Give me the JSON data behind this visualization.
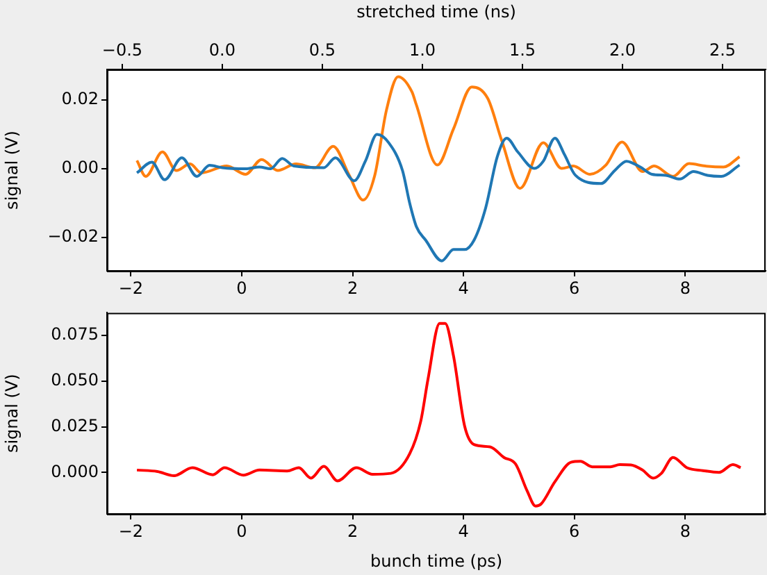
{
  "chart_data": [
    {
      "type": "line",
      "ylabel": "signal (V)",
      "x2label": "stretched time (ns)",
      "marker": "none",
      "xlim": [
        -2.43,
        9.45
      ],
      "xticks": [
        {
          "value": -2,
          "label": "−2"
        },
        0,
        2,
        4,
        6,
        8
      ],
      "x2lim": [
        -0.576,
        2.715
      ],
      "x2ticks": [
        {
          "value": -0.5,
          "label": "−0.5"
        },
        {
          "value": 0,
          "label": "0.0"
        },
        {
          "value": 0.5,
          "label": "0.5"
        },
        {
          "value": 1,
          "label": "1.0"
        },
        {
          "value": 1.5,
          "label": "1.5"
        },
        {
          "value": 2,
          "label": "2.0"
        },
        {
          "value": 2.5,
          "label": "2.5"
        }
      ],
      "ylim": [
        -0.0297,
        0.0289
      ],
      "yticks": [
        {
          "value": -0.02,
          "label": "−0.02"
        },
        {
          "value": 0,
          "label": "0.00"
        },
        {
          "value": 0.02,
          "label": "0.02"
        }
      ],
      "series": [
        {
          "color": "#1f77b4",
          "x": [
            -1.89,
            -1.62,
            -1.39,
            -1.08,
            -0.81,
            -0.58,
            -0.35,
            0.07,
            0.32,
            0.52,
            0.73,
            0.94,
            1.48,
            1.69,
            2.03,
            2.23,
            2.44,
            2.65,
            2.9,
            3.03,
            3.15,
            3.32,
            3.61,
            3.82,
            4.02,
            4.19,
            4.4,
            4.61,
            4.78,
            4.98,
            5.28,
            5.44,
            5.65,
            5.82,
            6.02,
            6.48,
            6.73,
            6.94,
            7.19,
            7.4,
            7.65,
            7.9,
            8.15,
            8.4,
            8.65,
            8.98
          ],
          "values": [
            -0.0012,
            0.0019,
            -0.0032,
            0.0032,
            -0.0022,
            0.001,
            0.0003,
            0,
            0.0005,
            0,
            0.003,
            0.0008,
            0.0003,
            0.0032,
            -0.0035,
            0.0022,
            0.01,
            0.0076,
            -0.0005,
            -0.01,
            -0.0168,
            -0.0208,
            -0.0268,
            -0.0235,
            -0.0235,
            -0.0208,
            -0.0114,
            0.0035,
            0.0089,
            0.0049,
            0.0001,
            0.0022,
            0.0089,
            0.0042,
            -0.0019,
            -0.0043,
            -0.0005,
            0.0022,
            0.0005,
            -0.0016,
            -0.0019,
            -0.003,
            -0.0008,
            -0.0019,
            -0.0022,
            0.0011
          ]
        },
        {
          "color": "#ff7f0e",
          "x": [
            -1.89,
            -1.73,
            -1.43,
            -1.18,
            -0.93,
            -0.73,
            -0.27,
            0.07,
            0.36,
            0.65,
            0.98,
            1.32,
            1.65,
            1.94,
            2.19,
            2.4,
            2.61,
            2.82,
            3.07,
            3.15,
            3.53,
            3.82,
            4.15,
            4.44,
            4.69,
            5.02,
            5.44,
            5.77,
            5.98,
            6.28,
            6.57,
            6.86,
            7.23,
            7.44,
            7.78,
            8.07,
            8.36,
            8.69,
            8.98
          ],
          "values": [
            0.0024,
            -0.0022,
            0.0049,
            -0.0005,
            0.0014,
            -0.0012,
            0.0008,
            -0.0016,
            0.0027,
            -0.0005,
            0.0014,
            0.0003,
            0.0065,
            -0.0019,
            -0.0091,
            -0.0019,
            0.017,
            0.0268,
            0.0224,
            0.0186,
            0.0011,
            0.0116,
            0.0238,
            0.0204,
            0.0082,
            -0.0057,
            0.0076,
            0.0001,
            0.0008,
            -0.0016,
            0.0011,
            0.0078,
            -0.0008,
            0.0008,
            -0.0022,
            0.0015,
            0.0008,
            0.0005,
            0.0035
          ]
        }
      ]
    },
    {
      "type": "line",
      "xlabel": "bunch time (ps)",
      "ylabel": "signal (V)",
      "marker": "none",
      "xlim": [
        -2.43,
        9.45
      ],
      "xticks": [
        {
          "value": -2,
          "label": "−2"
        },
        0,
        2,
        4,
        6,
        8
      ],
      "ylim": [
        -0.0227,
        0.0874
      ],
      "yticks": [
        {
          "value": 0,
          "label": "0.000"
        },
        {
          "value": 0.025,
          "label": "0.025"
        },
        {
          "value": 0.05,
          "label": "0.050"
        },
        {
          "value": 0.075,
          "label": "0.075"
        }
      ],
      "series": [
        {
          "color": "#ff0000",
          "x": [
            -1.89,
            -1.52,
            -1.22,
            -0.89,
            -0.52,
            -0.31,
            0.03,
            0.32,
            0.82,
            1.03,
            1.25,
            1.48,
            1.73,
            2.07,
            2.36,
            2.69,
            3.03,
            3.23,
            3.36,
            3.57,
            3.67,
            3.82,
            4.02,
            4.19,
            4.48,
            4.73,
            4.94,
            5.15,
            5.3,
            5.4,
            5.65,
            5.94,
            6.11,
            6.32,
            6.65,
            6.82,
            7.02,
            7.23,
            7.42,
            7.57,
            7.78,
            8.03,
            8.32,
            8.61,
            8.86,
            9.0
          ],
          "values": [
            0.0013,
            0.0005,
            -0.0018,
            0.0026,
            -0.0013,
            0.0026,
            -0.0015,
            0.0013,
            0.0008,
            0.0026,
            -0.0031,
            0.0033,
            -0.0046,
            0.0026,
            -0.001,
            -0.0005,
            0.0102,
            0.0281,
            0.051,
            0.0816,
            0.0816,
            0.0638,
            0.0255,
            0.0153,
            0.014,
            0.0082,
            0.0046,
            -0.0102,
            -0.0184,
            -0.0173,
            -0.0051,
            0.0056,
            0.0061,
            0.0031,
            0.0031,
            0.0043,
            0.0041,
            0.0013,
            -0.0031,
            -0.0005,
            0.0082,
            0.0026,
            0.001,
            0,
            0.0043,
            0.0026
          ]
        }
      ]
    }
  ]
}
